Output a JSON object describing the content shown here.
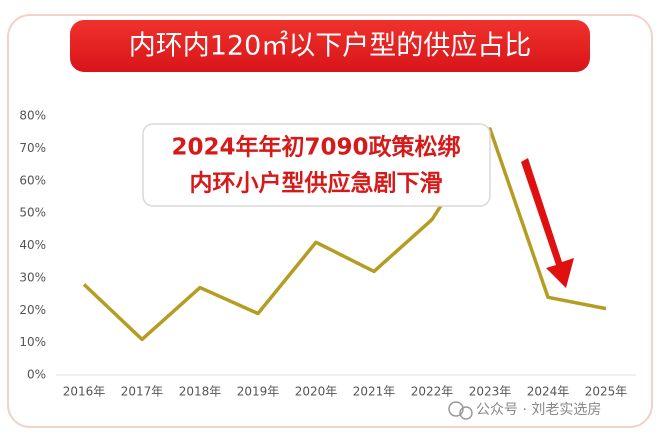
{
  "chart_data": {
    "type": "line",
    "title": "内环内120㎡以下户型的供应占比",
    "categories": [
      "2016年",
      "2017年",
      "2018年",
      "2019年",
      "2020年",
      "2021年",
      "2022年",
      "2023年",
      "2024年",
      "2025年"
    ],
    "series": [
      {
        "name": "供应占比",
        "color": "#b59d22",
        "values": [
          28,
          11,
          27,
          19,
          41,
          32,
          48,
          76,
          24,
          20.5
        ]
      }
    ],
    "ylim": [
      0,
      80
    ],
    "yticks": [
      {
        "value": 0,
        "label": "0%"
      },
      {
        "value": 10,
        "label": "10%"
      },
      {
        "value": 20,
        "label": "20%"
      },
      {
        "value": 30,
        "label": "30%"
      },
      {
        "value": 40,
        "label": "40%"
      },
      {
        "value": 50,
        "label": "50%"
      },
      {
        "value": 60,
        "label": "60%"
      },
      {
        "value": 70,
        "label": "70%"
      },
      {
        "value": 80,
        "label": "80%"
      }
    ],
    "grid": false,
    "annotations": [
      "2024年年初7090政策松绑",
      "内环小户型供应急剧下滑"
    ],
    "watermark": "公众号 · 刘老实选房"
  }
}
